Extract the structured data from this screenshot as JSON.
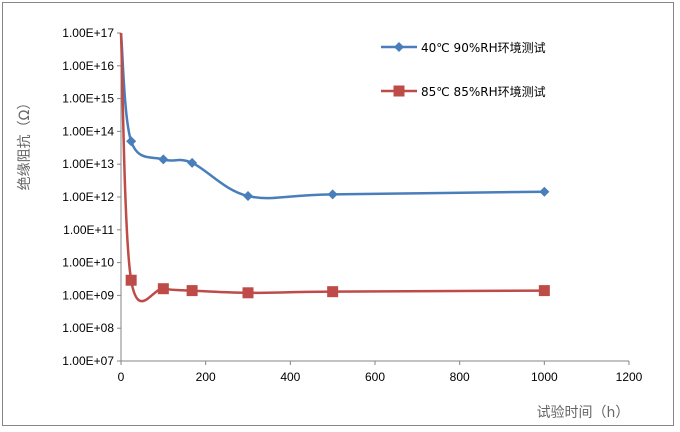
{
  "chart_data": {
    "type": "line",
    "title": "",
    "xlabel": "试验时间（h）",
    "ylabel": "绝缘阻抗（Ω）",
    "xlim": [
      0,
      1200
    ],
    "ylim": [
      10000000.0,
      1e+17
    ],
    "yscale": "log",
    "xticks": [
      "0",
      "200",
      "400",
      "600",
      "800",
      "1000",
      "1200"
    ],
    "yticks": [
      "1.00E+07",
      "1.00E+08",
      "1.00E+09",
      "1.00E+10",
      "1.00E+11",
      "1.00E+12",
      "1.00E+13",
      "1.00E+14",
      "1.00E+15",
      "1.00E+16",
      "1.00E+17"
    ],
    "grid": false,
    "legend_position": "top-right",
    "smooth": true,
    "series": [
      {
        "name": "40℃ 90%RH环境测试",
        "color": "#4a7ebb",
        "marker": "diamond",
        "x": [
          0,
          24,
          100,
          168,
          300,
          500,
          1000
        ],
        "y": [
          1e+17,
          50000000000000.0,
          14000000000000.0,
          11000000000000.0,
          1070000000000.0,
          1200000000000.0,
          1450000000000.0
        ]
      },
      {
        "name": "85℃ 85%RH环境测试",
        "color": "#be4b48",
        "marker": "square",
        "x": [
          0,
          24,
          100,
          168,
          300,
          500,
          1000
        ],
        "y": [
          1e+17,
          2900000000.0,
          1600000000.0,
          1400000000.0,
          1200000000.0,
          1300000000.0,
          1400000000.0
        ]
      }
    ]
  }
}
